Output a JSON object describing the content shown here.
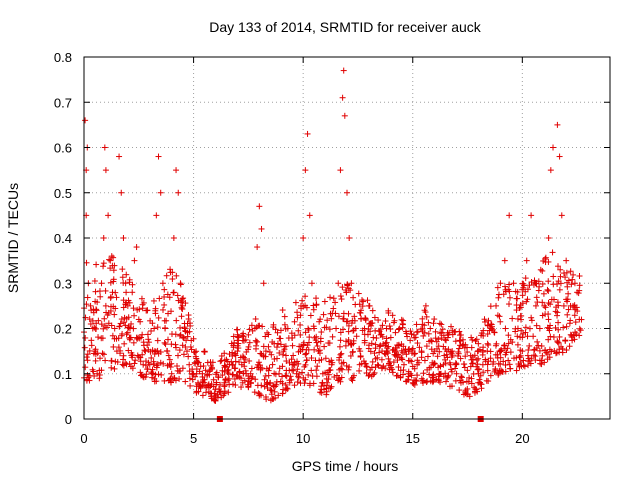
{
  "chart_data": {
    "type": "scatter",
    "title": "Day 133 of 2014, SRMTID for receiver auck",
    "xlabel": "GPS time / hours",
    "ylabel": "SRMTID / TECUs",
    "xlim": [
      0,
      24
    ],
    "ylim": [
      0,
      0.8
    ],
    "xticks": [
      0,
      5,
      10,
      15,
      20
    ],
    "xtick_labels": [
      "0",
      "5",
      "10",
      "15",
      "20"
    ],
    "yticks": [
      0,
      0.1,
      0.2,
      0.3,
      0.4,
      0.5,
      0.6,
      0.7,
      0.8
    ],
    "ytick_labels": [
      "0",
      "0.1",
      "0.2",
      "0.3",
      "0.4",
      "0.5",
      "0.6",
      "0.7",
      "0.8"
    ],
    "grid": true,
    "marker": "plus",
    "color": "#e00000",
    "series": [
      {
        "name": "SRMTID",
        "points": [
          [
            0.05,
            0.66
          ],
          [
            0.1,
            0.55
          ],
          [
            0.15,
            0.6
          ],
          [
            0.1,
            0.45
          ],
          [
            0.2,
            0.3
          ],
          [
            0.3,
            0.25
          ],
          [
            0.4,
            0.2
          ],
          [
            0.5,
            0.15
          ],
          [
            0.6,
            0.1
          ],
          [
            0.7,
            0.09
          ],
          [
            0.8,
            0.3
          ],
          [
            0.9,
            0.4
          ],
          [
            0.95,
            0.6
          ],
          [
            1.0,
            0.55
          ],
          [
            1.1,
            0.45
          ],
          [
            1.2,
            0.35
          ],
          [
            1.3,
            0.28
          ],
          [
            1.4,
            0.2
          ],
          [
            1.5,
            0.15
          ],
          [
            1.6,
            0.58
          ],
          [
            1.7,
            0.5
          ],
          [
            1.8,
            0.4
          ],
          [
            1.9,
            0.3
          ],
          [
            2.0,
            0.25
          ],
          [
            2.1,
            0.2
          ],
          [
            2.2,
            0.28
          ],
          [
            2.3,
            0.35
          ],
          [
            2.4,
            0.38
          ],
          [
            2.5,
            0.22
          ],
          [
            2.6,
            0.18
          ],
          [
            2.7,
            0.12
          ],
          [
            2.8,
            0.15
          ],
          [
            3.0,
            0.12
          ],
          [
            3.1,
            0.1
          ],
          [
            3.2,
            0.2
          ],
          [
            3.3,
            0.45
          ],
          [
            3.4,
            0.58
          ],
          [
            3.5,
            0.5
          ],
          [
            3.6,
            0.3
          ],
          [
            3.7,
            0.2
          ],
          [
            3.8,
            0.15
          ],
          [
            3.9,
            0.12
          ],
          [
            4.0,
            0.1
          ],
          [
            4.1,
            0.4
          ],
          [
            4.2,
            0.55
          ],
          [
            4.3,
            0.5
          ],
          [
            4.4,
            0.3
          ],
          [
            4.5,
            0.25
          ],
          [
            4.6,
            0.2
          ],
          [
            4.7,
            0.15
          ],
          [
            4.8,
            0.12
          ],
          [
            5.0,
            0.1
          ],
          [
            5.2,
            0.08
          ],
          [
            5.4,
            0.1
          ],
          [
            5.6,
            0.07
          ],
          [
            5.8,
            0.05
          ],
          [
            6.0,
            0.04
          ],
          [
            6.2,
            0.06
          ],
          [
            6.4,
            0.08
          ],
          [
            6.6,
            0.1
          ],
          [
            6.8,
            0.12
          ],
          [
            7.0,
            0.15
          ],
          [
            7.2,
            0.12
          ],
          [
            7.4,
            0.1
          ],
          [
            7.6,
            0.08
          ],
          [
            7.8,
            0.2
          ],
          [
            7.9,
            0.38
          ],
          [
            8.0,
            0.47
          ],
          [
            8.1,
            0.42
          ],
          [
            8.2,
            0.3
          ],
          [
            8.3,
            0.15
          ],
          [
            8.5,
            0.08
          ],
          [
            8.7,
            0.06
          ],
          [
            8.9,
            0.1
          ],
          [
            9.1,
            0.15
          ],
          [
            9.3,
            0.2
          ],
          [
            9.5,
            0.12
          ],
          [
            9.7,
            0.1
          ],
          [
            9.9,
            0.25
          ],
          [
            10.0,
            0.4
          ],
          [
            10.1,
            0.55
          ],
          [
            10.2,
            0.63
          ],
          [
            10.3,
            0.45
          ],
          [
            10.4,
            0.3
          ],
          [
            10.5,
            0.2
          ],
          [
            10.7,
            0.15
          ],
          [
            10.9,
            0.1
          ],
          [
            11.1,
            0.08
          ],
          [
            11.3,
            0.12
          ],
          [
            11.5,
            0.2
          ],
          [
            11.6,
            0.3
          ],
          [
            11.7,
            0.55
          ],
          [
            11.8,
            0.71
          ],
          [
            11.85,
            0.77
          ],
          [
            11.9,
            0.67
          ],
          [
            12.0,
            0.5
          ],
          [
            12.1,
            0.4
          ],
          [
            12.2,
            0.3
          ],
          [
            12.4,
            0.2
          ],
          [
            12.6,
            0.15
          ],
          [
            12.8,
            0.2
          ],
          [
            13.0,
            0.25
          ],
          [
            13.2,
            0.18
          ],
          [
            13.4,
            0.12
          ],
          [
            13.6,
            0.15
          ],
          [
            13.8,
            0.2
          ],
          [
            14.0,
            0.18
          ],
          [
            14.2,
            0.15
          ],
          [
            14.4,
            0.2
          ],
          [
            14.6,
            0.12
          ],
          [
            14.8,
            0.1
          ],
          [
            15.0,
            0.08
          ],
          [
            15.2,
            0.12
          ],
          [
            15.4,
            0.15
          ],
          [
            15.6,
            0.25
          ],
          [
            15.8,
            0.2
          ],
          [
            16.0,
            0.15
          ],
          [
            16.2,
            0.1
          ],
          [
            16.4,
            0.12
          ],
          [
            16.6,
            0.18
          ],
          [
            16.8,
            0.15
          ],
          [
            17.0,
            0.1
          ],
          [
            17.2,
            0.08
          ],
          [
            17.4,
            0.06
          ],
          [
            17.6,
            0.05
          ],
          [
            17.8,
            0.07
          ],
          [
            18.0,
            0.1
          ],
          [
            18.2,
            0.12
          ],
          [
            18.4,
            0.15
          ],
          [
            18.6,
            0.2
          ],
          [
            18.8,
            0.25
          ],
          [
            19.0,
            0.3
          ],
          [
            19.2,
            0.35
          ],
          [
            19.4,
            0.45
          ],
          [
            19.6,
            0.3
          ],
          [
            19.8,
            0.2
          ],
          [
            20.0,
            0.15
          ],
          [
            20.2,
            0.35
          ],
          [
            20.4,
            0.45
          ],
          [
            20.6,
            0.3
          ],
          [
            20.8,
            0.2
          ],
          [
            21.0,
            0.25
          ],
          [
            21.2,
            0.4
          ],
          [
            21.3,
            0.55
          ],
          [
            21.4,
            0.6
          ],
          [
            21.6,
            0.65
          ],
          [
            21.7,
            0.58
          ],
          [
            21.8,
            0.45
          ],
          [
            22.0,
            0.35
          ],
          [
            22.2,
            0.25
          ],
          [
            22.4,
            0.3
          ],
          [
            22.5,
            0.28
          ],
          [
            22.6,
            0.22
          ]
        ],
        "density_envelope": [
          [
            0.0,
            0.08,
            0.36
          ],
          [
            0.5,
            0.09,
            0.34
          ],
          [
            1.0,
            0.1,
            0.38
          ],
          [
            1.5,
            0.11,
            0.36
          ],
          [
            2.0,
            0.12,
            0.32
          ],
          [
            2.5,
            0.1,
            0.28
          ],
          [
            3.0,
            0.08,
            0.24
          ],
          [
            3.5,
            0.08,
            0.3
          ],
          [
            4.0,
            0.08,
            0.34
          ],
          [
            4.5,
            0.09,
            0.3
          ],
          [
            5.0,
            0.06,
            0.18
          ],
          [
            5.5,
            0.05,
            0.15
          ],
          [
            6.0,
            0.04,
            0.12
          ],
          [
            6.5,
            0.05,
            0.16
          ],
          [
            7.0,
            0.07,
            0.2
          ],
          [
            7.5,
            0.07,
            0.2
          ],
          [
            8.0,
            0.05,
            0.24
          ],
          [
            8.5,
            0.04,
            0.2
          ],
          [
            9.0,
            0.05,
            0.24
          ],
          [
            9.5,
            0.07,
            0.26
          ],
          [
            10.0,
            0.08,
            0.28
          ],
          [
            10.5,
            0.07,
            0.27
          ],
          [
            11.0,
            0.05,
            0.26
          ],
          [
            11.5,
            0.08,
            0.28
          ],
          [
            12.0,
            0.08,
            0.3
          ],
          [
            12.5,
            0.09,
            0.28
          ],
          [
            13.0,
            0.09,
            0.26
          ],
          [
            13.5,
            0.1,
            0.24
          ],
          [
            14.0,
            0.1,
            0.24
          ],
          [
            14.5,
            0.09,
            0.22
          ],
          [
            15.0,
            0.07,
            0.2
          ],
          [
            15.5,
            0.08,
            0.25
          ],
          [
            16.0,
            0.08,
            0.24
          ],
          [
            16.5,
            0.08,
            0.22
          ],
          [
            17.0,
            0.06,
            0.2
          ],
          [
            17.5,
            0.05,
            0.18
          ],
          [
            18.0,
            0.06,
            0.18
          ],
          [
            18.5,
            0.08,
            0.26
          ],
          [
            19.0,
            0.1,
            0.3
          ],
          [
            19.5,
            0.11,
            0.32
          ],
          [
            20.0,
            0.1,
            0.3
          ],
          [
            20.5,
            0.12,
            0.34
          ],
          [
            21.0,
            0.12,
            0.36
          ],
          [
            21.5,
            0.14,
            0.38
          ],
          [
            22.0,
            0.15,
            0.34
          ],
          [
            22.5,
            0.18,
            0.32
          ]
        ]
      }
    ],
    "markers_on_xaxis": [
      6.2,
      18.1
    ]
  }
}
